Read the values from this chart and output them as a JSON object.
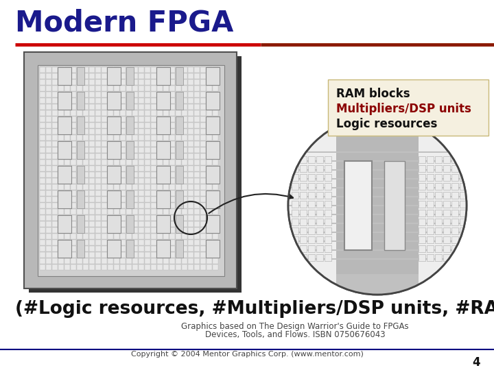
{
  "title": "Modern FPGA",
  "title_color": "#1a1a8c",
  "title_fontsize": 30,
  "subtitle_line1": "(#Logic resources, #Multipliers/DSP units, #RAM_blocks)",
  "subtitle_fontsize": 19,
  "subtitle_color": "#111111",
  "label_ram": "RAM blocks",
  "label_dsp": "Multipliers/DSP units",
  "label_logic": "Logic resources",
  "label_dsp_color": "#8b0000",
  "label_ram_color": "#111111",
  "label_logic_color": "#111111",
  "label_fontsize": 11,
  "credits1": "Graphics based on The Design Warrior's Guide to FPGAs",
  "credits2": "Devices, Tools, and Flows. ISBN 0750676043",
  "credits3": "Copyright © 2004 Mentor Graphics Corp. (www.mentor.com)",
  "credits_fontsize": 8.5,
  "page_num": "4",
  "bg_color": "#ffffff",
  "chip_bg": "#b8b8b8",
  "chip_shadow": "#333333",
  "cell_bg": "#e8e8e8",
  "ram_block_color": "#e0e0e0",
  "dsp_block_color": "#d0d0d0",
  "zoom_bg": "#d8d8d8",
  "zoom_inner": "#eeeeee",
  "label_box_bg": "#f5f0e0",
  "label_box_edge": "#c8b878",
  "header_line_red": "#cc0000",
  "header_line_brown": "#8b1a00"
}
